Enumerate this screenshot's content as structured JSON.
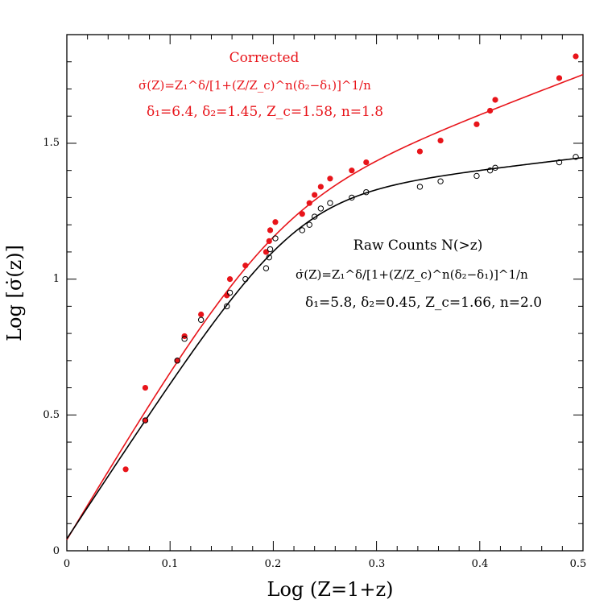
{
  "chart_data": {
    "type": "scatter",
    "xlabel": "Log  (Z=1+z)",
    "ylabel": "Log  [σ̇(z)]",
    "xlim": [
      0,
      0.5
    ],
    "ylim": [
      0,
      1.9
    ],
    "x_ticks": [
      "0",
      "0.1",
      "0.2",
      "0.3",
      "0.4",
      "0.5"
    ],
    "y_ticks": [
      "0",
      "0.5",
      "1",
      "1.5"
    ],
    "colors": {
      "corrected": "#e8141a",
      "raw": "#000000"
    },
    "annotations": {
      "corrected_title": "Corrected",
      "corrected_formula": "σ̇(Z)=Z₁^δ/[1+(Z/Z_c)^n(δ₂−δ₁)]^1/n",
      "corrected_params": "δ₁=6.4,  δ₂=1.45,  Z_c=1.58,  n=1.8",
      "raw_title": "Raw Counts N(>z)",
      "raw_formula": "σ̇(Z)=Z₁^δ/[1+(Z/Z_c)^n(δ₂−δ₁)]^1/n",
      "raw_params": "δ₁=5.8,  δ₂=0.45,  Z_c=1.66,  n=2.0"
    },
    "series": [
      {
        "name": "Corrected",
        "marker": "filled",
        "points": [
          [
            0.057,
            0.3
          ],
          [
            0.076,
            0.6
          ],
          [
            0.076,
            0.48
          ],
          [
            0.107,
            0.7
          ],
          [
            0.114,
            0.79
          ],
          [
            0.13,
            0.87
          ],
          [
            0.155,
            0.94
          ],
          [
            0.158,
            1.0
          ],
          [
            0.173,
            1.05
          ],
          [
            0.193,
            1.1
          ],
          [
            0.196,
            1.14
          ],
          [
            0.197,
            1.18
          ],
          [
            0.202,
            1.21
          ],
          [
            0.228,
            1.24
          ],
          [
            0.235,
            1.28
          ],
          [
            0.24,
            1.31
          ],
          [
            0.246,
            1.34
          ],
          [
            0.255,
            1.37
          ],
          [
            0.276,
            1.4
          ],
          [
            0.29,
            1.43
          ],
          [
            0.342,
            1.47
          ],
          [
            0.362,
            1.51
          ],
          [
            0.397,
            1.57
          ],
          [
            0.41,
            1.62
          ],
          [
            0.415,
            1.66
          ],
          [
            0.477,
            1.74
          ],
          [
            0.493,
            1.82
          ]
        ]
      },
      {
        "name": "Raw Counts N(>z)",
        "marker": "open",
        "points": [
          [
            0.076,
            0.48
          ],
          [
            0.107,
            0.7
          ],
          [
            0.114,
            0.78
          ],
          [
            0.13,
            0.85
          ],
          [
            0.155,
            0.9
          ],
          [
            0.158,
            0.95
          ],
          [
            0.173,
            1.0
          ],
          [
            0.193,
            1.04
          ],
          [
            0.196,
            1.08
          ],
          [
            0.197,
            1.11
          ],
          [
            0.202,
            1.15
          ],
          [
            0.228,
            1.18
          ],
          [
            0.235,
            1.2
          ],
          [
            0.24,
            1.23
          ],
          [
            0.246,
            1.26
          ],
          [
            0.255,
            1.28
          ],
          [
            0.276,
            1.3
          ],
          [
            0.29,
            1.32
          ],
          [
            0.342,
            1.34
          ],
          [
            0.362,
            1.36
          ],
          [
            0.397,
            1.38
          ],
          [
            0.41,
            1.4
          ],
          [
            0.415,
            1.41
          ],
          [
            0.477,
            1.43
          ],
          [
            0.493,
            1.45
          ]
        ]
      }
    ],
    "fit_curves": [
      {
        "name": "Corrected fit",
        "delta1": 6.4,
        "delta2": 1.45,
        "Zc": 1.58,
        "n": 1.8,
        "y0": 0.045
      },
      {
        "name": "Raw Counts fit",
        "delta1": 5.8,
        "delta2": 0.45,
        "Zc": 1.66,
        "n": 2.0,
        "y0": 0.045
      }
    ]
  }
}
